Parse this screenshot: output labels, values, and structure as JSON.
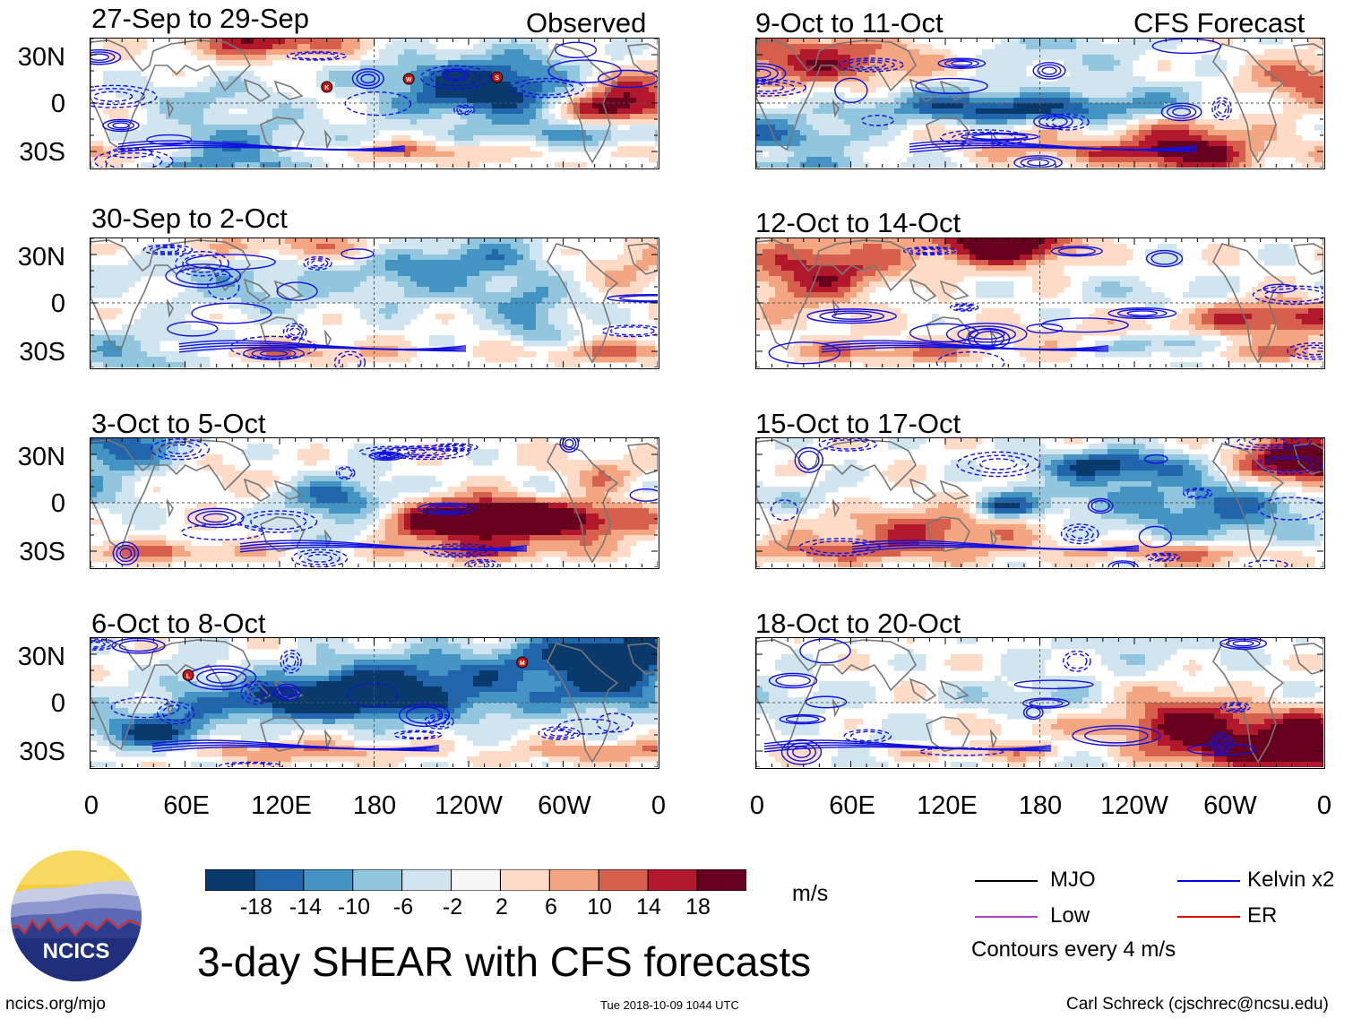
{
  "header": {
    "left_title": "Observed",
    "right_title": "CFS Forecast"
  },
  "panels_left": [
    {
      "label": "27-Sep to 29-Sep",
      "seed": 3
    },
    {
      "label": "30-Sep to 2-Oct",
      "seed": 7
    },
    {
      "label": "3-Oct to 5-Oct",
      "seed": 11
    },
    {
      "label": "6-Oct to 8-Oct",
      "seed": 17
    }
  ],
  "panels_right": [
    {
      "label": "9-Oct to 11-Oct",
      "seed": 23
    },
    {
      "label": "12-Oct to 14-Oct",
      "seed": 29
    },
    {
      "label": "15-Oct to 17-Oct",
      "seed": 31
    },
    {
      "label": "18-Oct to 20-Oct",
      "seed": 37
    }
  ],
  "storm_markers": [
    {
      "panel": 0,
      "letter": "K",
      "lon": 150,
      "lat": 10
    },
    {
      "panel": 0,
      "letter": "W",
      "lon": 202,
      "lat": 15
    },
    {
      "panel": 0,
      "letter": "S",
      "lon": 258,
      "lat": 16
    },
    {
      "panel": 3,
      "letter": "L",
      "lon": 62,
      "lat": 17
    },
    {
      "panel": 3,
      "letter": "M",
      "lon": 274,
      "lat": 25
    }
  ],
  "y_ticks": [
    "30N",
    "0",
    "30S"
  ],
  "x_ticks": [
    "0",
    "60E",
    "120E",
    "180",
    "120W",
    "60W",
    "0"
  ],
  "colorbar": {
    "colors": [
      "#0a3a6b",
      "#2166ac",
      "#4393c3",
      "#92c5de",
      "#d1e5f0",
      "#f7f7f7",
      "#fddbc7",
      "#f4a582",
      "#d6604d",
      "#b2182b",
      "#67001f"
    ],
    "labels": [
      "-18",
      "-14",
      "-10",
      "-6",
      "-2",
      "2",
      "6",
      "10",
      "14",
      "18"
    ],
    "units": "m/s"
  },
  "legend": {
    "items": [
      {
        "label": "MJO",
        "color": "#000000"
      },
      {
        "label": "Kelvin x2",
        "color": "#0000dd"
      },
      {
        "label": "Low",
        "color": "#b03fcf"
      },
      {
        "label": "ER",
        "color": "#dd0000"
      }
    ],
    "note": "Contours every 4 m/s"
  },
  "main_title": "3-day SHEAR with CFS forecasts",
  "logo_text": "NCICS",
  "footer": {
    "url": "ncics.org/mjo",
    "timestamp": "Tue 2018-10-09 1044 UTC",
    "credit": "Carl Schreck (cjschrec@ncsu.edu)"
  }
}
